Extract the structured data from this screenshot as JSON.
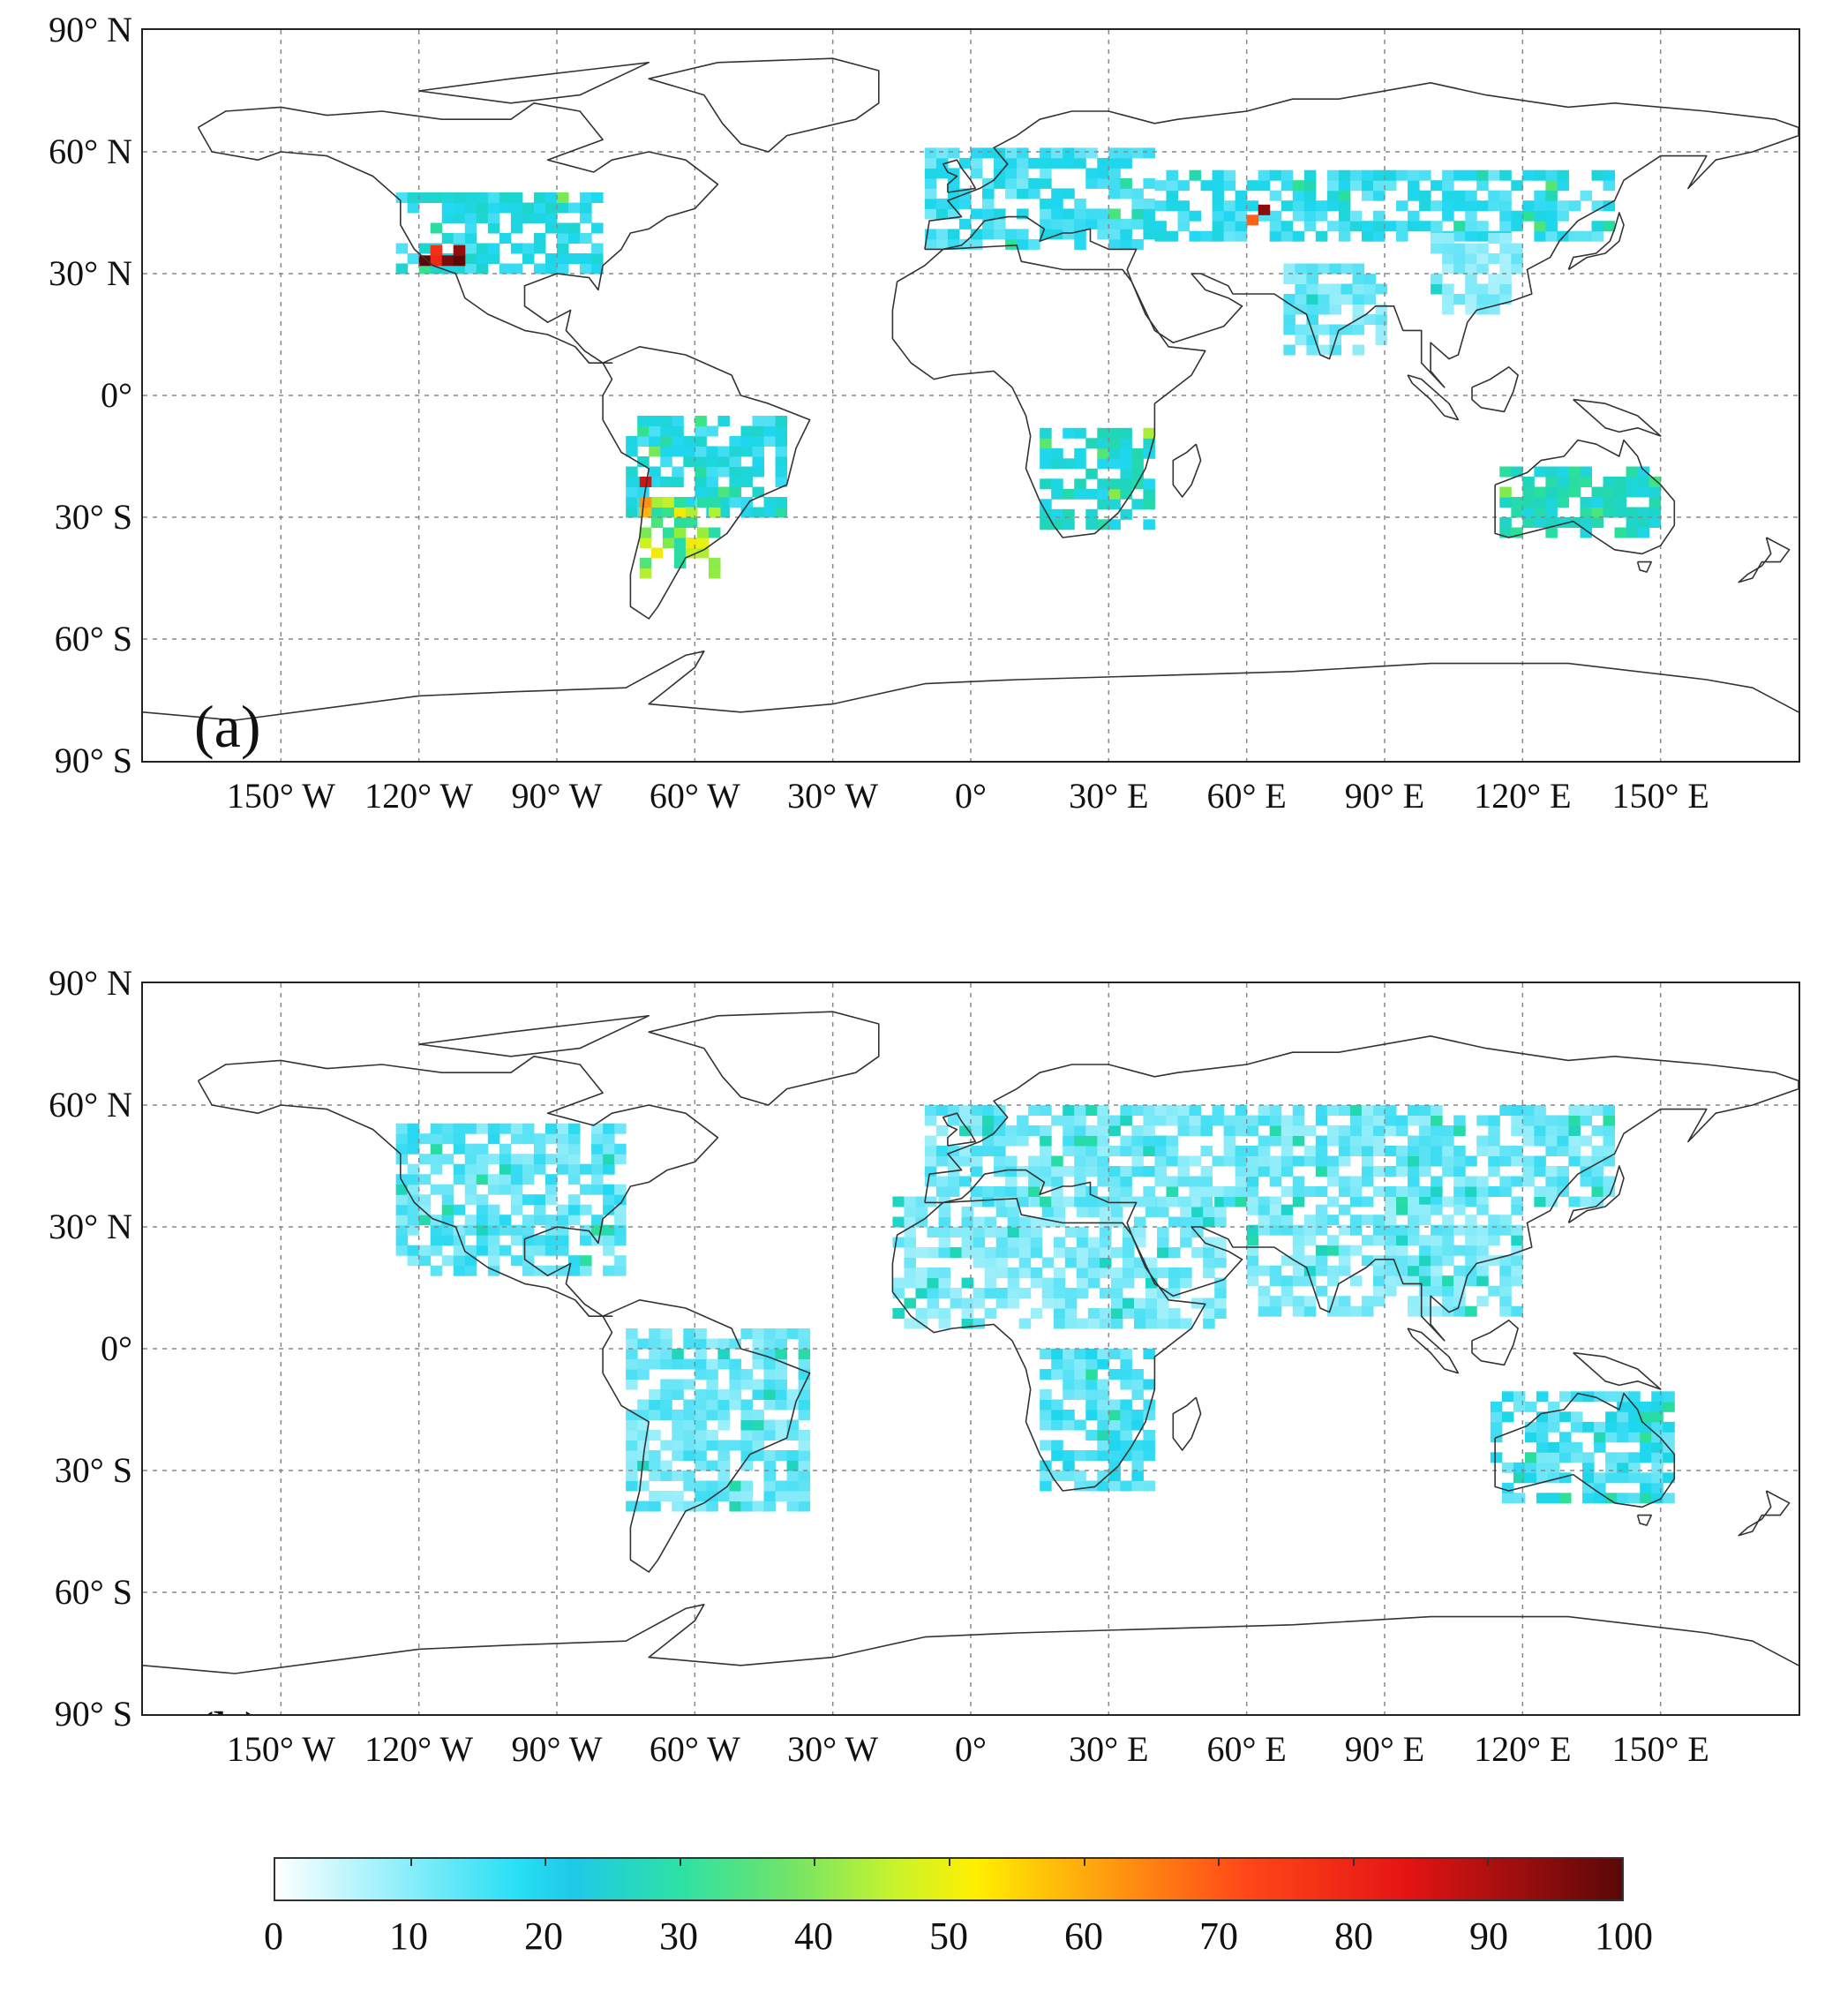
{
  "panels": [
    {
      "label": "(a)",
      "lat_labels": [
        "90° N",
        "60° N",
        "30° N",
        "0°",
        "30° S",
        "60° S",
        "90° S"
      ],
      "lon_labels": [
        "150° W",
        "120° W",
        "90° W",
        "60° W",
        "30° W",
        "0°",
        "30° E",
        "60° E",
        "90° E",
        "120° E",
        "150° E"
      ]
    },
    {
      "label": "(b)",
      "lat_labels": [
        "90° N",
        "60° N",
        "30° N",
        "0°",
        "30° S",
        "60° S",
        "90° S"
      ],
      "lon_labels": [
        "150° W",
        "120° W",
        "90° W",
        "60° W",
        "30° W",
        "0°",
        "30° E",
        "60° E",
        "90° E",
        "120° E",
        "150° E"
      ]
    }
  ],
  "colorbar": {
    "labels": [
      "0",
      "10",
      "20",
      "30",
      "40",
      "50",
      "60",
      "70",
      "80",
      "90",
      "100"
    ],
    "range": [
      0,
      100
    ],
    "colors": [
      "#ffffff",
      "#28dff5",
      "#2de1a6",
      "#c8f32c",
      "#ffef00",
      "#ff9a10",
      "#ff4818",
      "#e41414",
      "#5a0808"
    ]
  },
  "map": {
    "lon_range": [
      -180,
      180
    ],
    "lat_range": [
      -90,
      90
    ],
    "grid_lon": [
      -150,
      -120,
      -90,
      -60,
      -30,
      0,
      30,
      60,
      90,
      120,
      150
    ],
    "grid_lat": [
      60,
      30,
      0,
      -30,
      -60
    ],
    "coastline_color": "#333333",
    "grid_color": "#888888"
  },
  "regions_a": [
    {
      "lon": [
        -125,
        -80
      ],
      "lat": [
        30,
        50
      ],
      "value": 18
    },
    {
      "lon": [
        -120,
        -110
      ],
      "lat": [
        32,
        36
      ],
      "value": 95
    },
    {
      "lon": [
        -10,
        40
      ],
      "lat": [
        36,
        60
      ],
      "value": 15
    },
    {
      "lon": [
        40,
        140
      ],
      "lat": [
        38,
        55
      ],
      "value": 16
    },
    {
      "lon": [
        60,
        64
      ],
      "lat": [
        42,
        46
      ],
      "value": 85
    },
    {
      "lon": [
        -75,
        -40
      ],
      "lat": [
        -30,
        -5
      ],
      "value": 18
    },
    {
      "lon": [
        -72,
        -55
      ],
      "lat": [
        -45,
        -25
      ],
      "value": 38
    },
    {
      "lon": [
        -72,
        -70
      ],
      "lat": [
        -30,
        -20
      ],
      "value": 65
    },
    {
      "lon": [
        15,
        40
      ],
      "lat": [
        -33,
        -10
      ],
      "value": 22
    },
    {
      "lon": [
        115,
        150
      ],
      "lat": [
        -35,
        -18
      ],
      "value": 24
    },
    {
      "lon": [
        68,
        90
      ],
      "lat": [
        10,
        32
      ],
      "value": 12
    },
    {
      "lon": [
        100,
        120
      ],
      "lat": [
        20,
        40
      ],
      "value": 10
    }
  ],
  "regions_b": [
    {
      "lon": [
        -125,
        -75
      ],
      "lat": [
        18,
        55
      ],
      "value": 13
    },
    {
      "lon": [
        -75,
        -35
      ],
      "lat": [
        -40,
        5
      ],
      "value": 12
    },
    {
      "lon": [
        -17,
        55
      ],
      "lat": [
        5,
        37
      ],
      "value": 11
    },
    {
      "lon": [
        -10,
        140
      ],
      "lat": [
        35,
        60
      ],
      "value": 12
    },
    {
      "lon": [
        15,
        40
      ],
      "lat": [
        -35,
        0
      ],
      "value": 14
    },
    {
      "lon": [
        113,
        153
      ],
      "lat": [
        -38,
        -12
      ],
      "value": 15
    },
    {
      "lon": [
        60,
        120
      ],
      "lat": [
        8,
        35
      ],
      "value": 11
    }
  ]
}
